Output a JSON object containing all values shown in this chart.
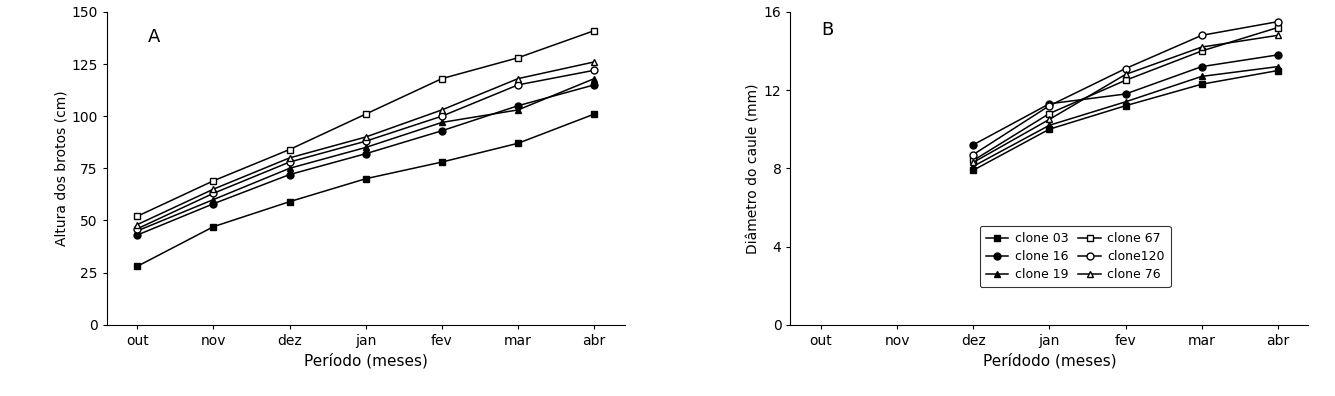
{
  "months": [
    "out",
    "nov",
    "dez",
    "jan",
    "fev",
    "mar",
    "abr"
  ],
  "panel_A": {
    "ylabel": "Altura dos brotos (cm)",
    "xlabel": "Período (meses)",
    "label": "A",
    "ylim": [
      0,
      150
    ],
    "yticks": [
      0,
      25,
      50,
      75,
      100,
      125,
      150
    ],
    "series": {
      "clone 03": [
        28,
        47,
        59,
        70,
        78,
        87,
        101
      ],
      "clone 16": [
        43,
        58,
        72,
        82,
        93,
        105,
        115
      ],
      "clone 19": [
        45,
        60,
        75,
        85,
        97,
        103,
        118
      ],
      "clone 67": [
        52,
        69,
        84,
        101,
        118,
        128,
        141
      ],
      "clone120": [
        46,
        63,
        78,
        88,
        100,
        115,
        122
      ],
      "clone 76": [
        48,
        65,
        80,
        90,
        103,
        118,
        126
      ]
    }
  },
  "panel_B": {
    "ylabel": "Diâmetro do caule (mm)",
    "xlabel": "Perídodo (meses)",
    "label": "B",
    "ylim": [
      0,
      16
    ],
    "yticks": [
      0,
      4,
      8,
      12,
      16
    ],
    "series": {
      "clone 03": [
        null,
        null,
        7.9,
        10.0,
        11.2,
        12.3,
        13.0
      ],
      "clone 16": [
        null,
        null,
        9.2,
        11.3,
        11.8,
        13.2,
        13.8
      ],
      "clone 19": [
        null,
        null,
        8.1,
        10.2,
        11.4,
        12.7,
        13.2
      ],
      "clone 67": [
        null,
        null,
        8.4,
        10.8,
        12.5,
        14.0,
        15.2
      ],
      "clone120": [
        null,
        null,
        8.7,
        11.2,
        13.1,
        14.8,
        15.5
      ],
      "clone 76": [
        null,
        null,
        8.3,
        10.5,
        12.8,
        14.2,
        14.8
      ]
    }
  },
  "clone_styles": {
    "clone 03": {
      "marker": "s",
      "filled": true,
      "color": "#000000"
    },
    "clone 16": {
      "marker": "o",
      "filled": true,
      "color": "#000000"
    },
    "clone 19": {
      "marker": "^",
      "filled": true,
      "color": "#000000"
    },
    "clone 67": {
      "marker": "s",
      "filled": false,
      "color": "#000000"
    },
    "clone120": {
      "marker": "o",
      "filled": false,
      "color": "#000000"
    },
    "clone 76": {
      "marker": "^",
      "filled": false,
      "color": "#000000"
    }
  },
  "legend_display": {
    "clone 03": "clone 03",
    "clone 16": "clone 16",
    "clone 19": "clone 19",
    "clone 67": "clone 67",
    "clone120": "clone120",
    "clone 76": "clone 76"
  },
  "all_clones": [
    "clone 03",
    "clone 16",
    "clone 19",
    "clone 67",
    "clone120",
    "clone 76"
  ]
}
